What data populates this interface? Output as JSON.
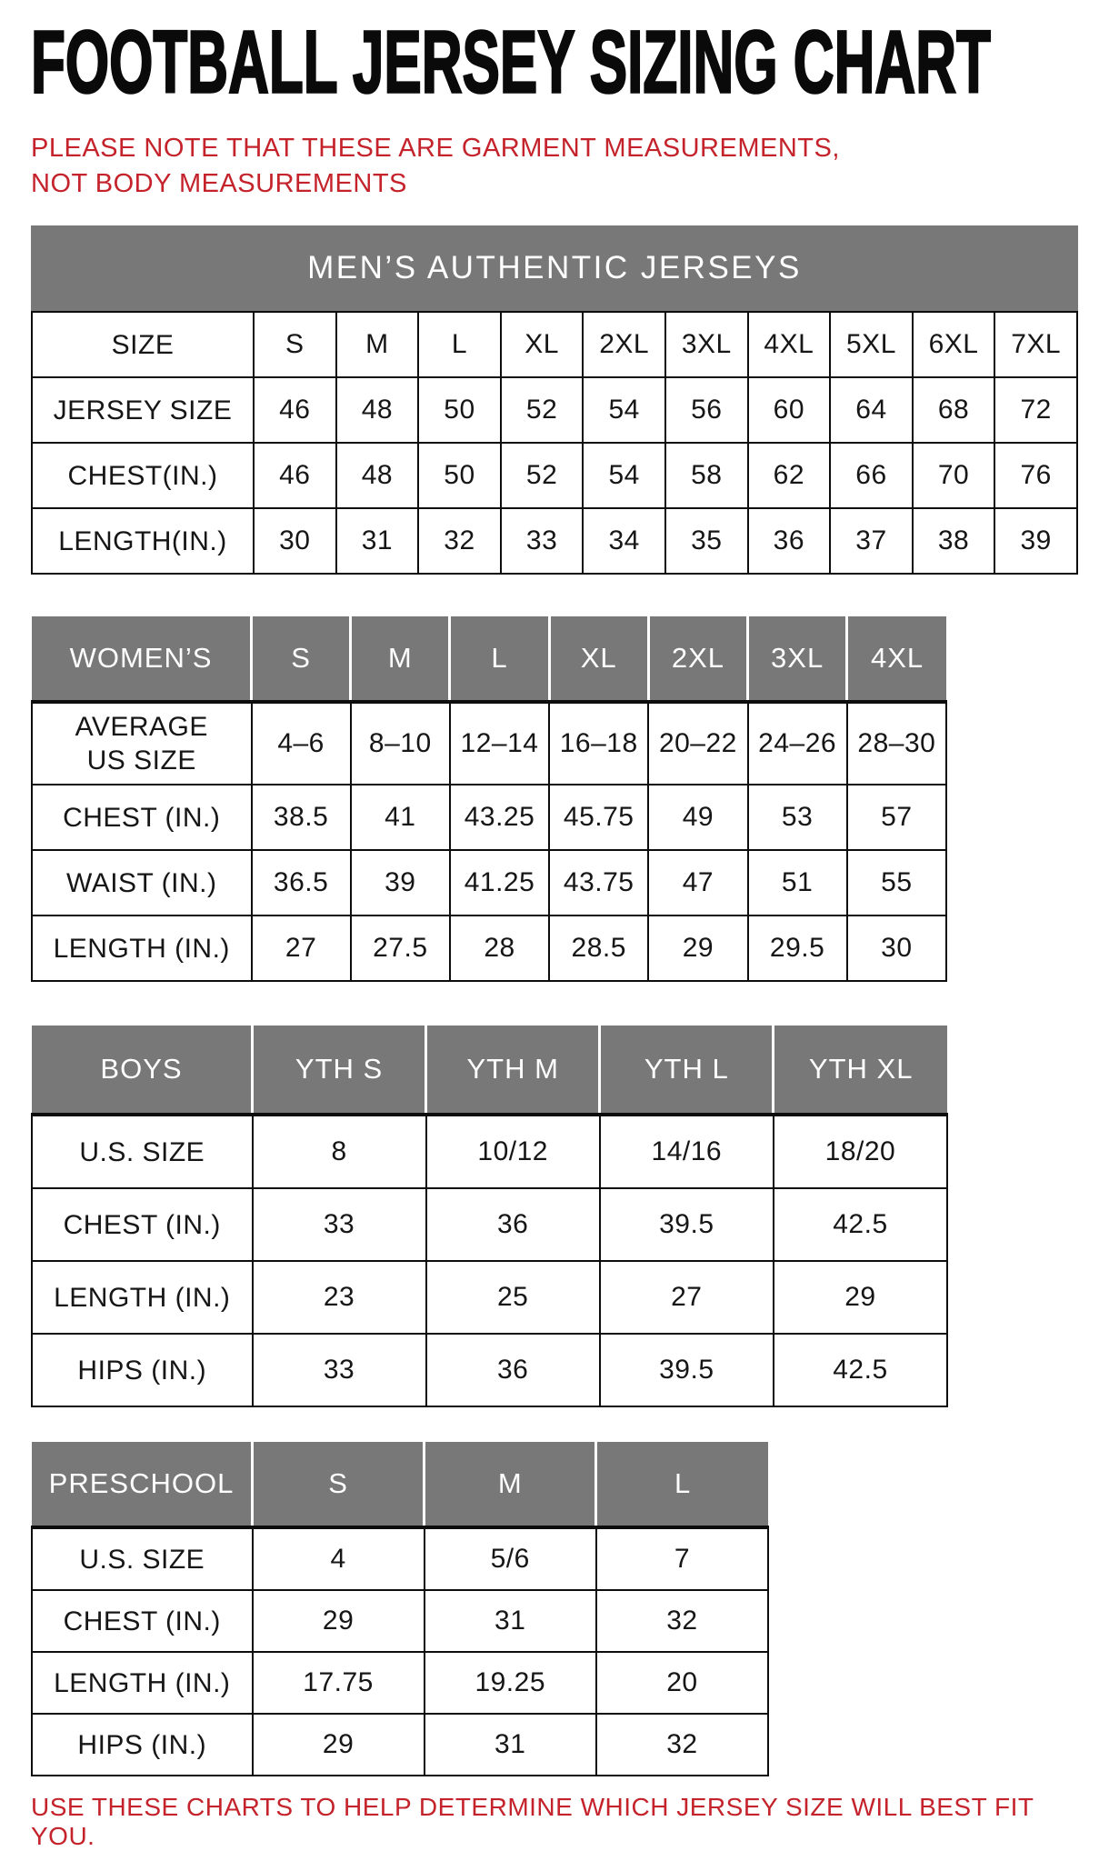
{
  "page": {
    "title": "FOOTBALL JERSEY SIZING CHART",
    "note": "PLEASE NOTE THAT THESE ARE GARMENT MEASUREMENTS, NOT BODY MEASUREMENTS",
    "footer": "USE THESE CHARTS TO HELP DETERMINE WHICH JERSEY SIZE WILL BEST FIT YOU.",
    "colors": {
      "accent_red": "#C5232B",
      "header_gray": "#787878",
      "border_black": "#0d0d0d"
    }
  },
  "tables": [
    {
      "id": "mens",
      "banner": "MEN’S AUTHENTIC JERSEYS",
      "rows": [
        {
          "label": "SIZE",
          "values": [
            "S",
            "M",
            "L",
            "XL",
            "2XL",
            "3XL",
            "4XL",
            "5XL",
            "6XL",
            "7XL"
          ]
        },
        {
          "label": "JERSEY SIZE",
          "values": [
            "46",
            "48",
            "50",
            "52",
            "54",
            "56",
            "60",
            "64",
            "68",
            "72"
          ]
        },
        {
          "label": "CHEST(IN.)",
          "values": [
            "46",
            "48",
            "50",
            "52",
            "54",
            "58",
            "62",
            "66",
            "70",
            "76"
          ]
        },
        {
          "label": "LENGTH(IN.)",
          "values": [
            "30",
            "31",
            "32",
            "33",
            "34",
            "35",
            "36",
            "37",
            "38",
            "39"
          ]
        }
      ]
    },
    {
      "id": "womens",
      "header_cells": [
        "WOMEN’S",
        "S",
        "M",
        "L",
        "XL",
        "2XL",
        "3XL",
        "4XL"
      ],
      "rows": [
        {
          "label": "AVERAGE US SIZE",
          "values": [
            "4–6",
            "8–10",
            "12–14",
            "16–18",
            "20–22",
            "24–26",
            "28–30"
          ]
        },
        {
          "label": "CHEST (IN.)",
          "values": [
            "38.5",
            "41",
            "43.25",
            "45.75",
            "49",
            "53",
            "57"
          ]
        },
        {
          "label": "WAIST (IN.)",
          "values": [
            "36.5",
            "39",
            "41.25",
            "43.75",
            "47",
            "51",
            "55"
          ]
        },
        {
          "label": "LENGTH (IN.)",
          "values": [
            "27",
            "27.5",
            "28",
            "28.5",
            "29",
            "29.5",
            "30"
          ]
        }
      ]
    },
    {
      "id": "boys",
      "header_cells": [
        "BOYS",
        "YTH S",
        "YTH M",
        "YTH L",
        "YTH XL"
      ],
      "rows": [
        {
          "label": "U.S. SIZE",
          "values": [
            "8",
            "10/12",
            "14/16",
            "18/20"
          ]
        },
        {
          "label": "CHEST (IN.)",
          "values": [
            "33",
            "36",
            "39.5",
            "42.5"
          ]
        },
        {
          "label": "LENGTH (IN.)",
          "values": [
            "23",
            "25",
            "27",
            "29"
          ]
        },
        {
          "label": "HIPS (IN.)",
          "values": [
            "33",
            "36",
            "39.5",
            "42.5"
          ]
        }
      ]
    },
    {
      "id": "preschool",
      "header_cells": [
        "PRESCHOOL",
        "S",
        "M",
        "L"
      ],
      "rows": [
        {
          "label": "U.S. SIZE",
          "values": [
            "4",
            "5/6",
            "7"
          ]
        },
        {
          "label": "CHEST (IN.)",
          "values": [
            "29",
            "31",
            "32"
          ]
        },
        {
          "label": "LENGTH (IN.)",
          "values": [
            "17.75",
            "19.25",
            "20"
          ]
        },
        {
          "label": "HIPS (IN.)",
          "values": [
            "29",
            "31",
            "32"
          ]
        }
      ]
    }
  ]
}
